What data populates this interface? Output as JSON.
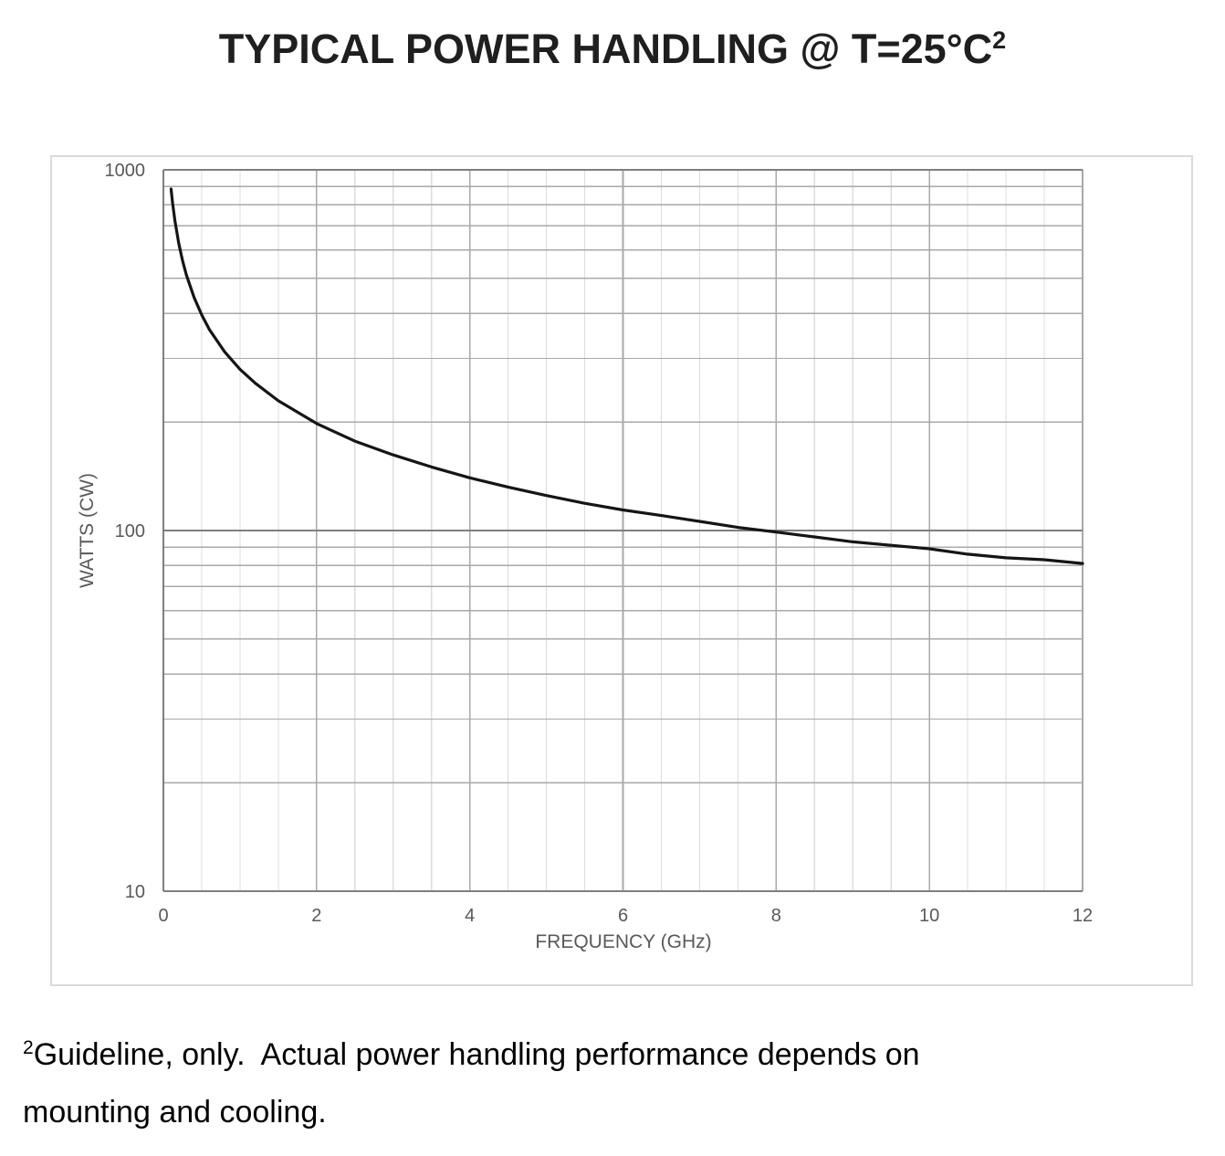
{
  "title": {
    "text": "TYPICAL POWER HANDLING @ T=25°C",
    "superscript": "2"
  },
  "footnote": {
    "superscript": "2",
    "line1": "Guideline, only.  Actual power handling performance depends on",
    "line2": "mounting and cooling."
  },
  "chart_data": {
    "type": "line",
    "title": "TYPICAL POWER HANDLING @ T=25°C²",
    "xlabel": "FREQUENCY (GHz)",
    "ylabel": "WATTS (CW)",
    "xlim": [
      0,
      12
    ],
    "ylim": [
      10,
      1000
    ],
    "y_scale": "log10",
    "grid": true,
    "legend": "none",
    "x_major_ticks": [
      0,
      2,
      4,
      6,
      8,
      10,
      12
    ],
    "x_tick_labels": [
      "0",
      "2",
      "4",
      "6",
      "8",
      "10",
      "12"
    ],
    "x_minor_step": 0.5,
    "y_major_ticks": [
      10,
      100,
      1000
    ],
    "y_tick_labels": [
      "10",
      "100",
      "1000"
    ],
    "y_minor_gridlines": [
      20,
      30,
      40,
      50,
      60,
      70,
      80,
      90,
      200,
      300,
      400,
      500,
      600,
      700,
      800,
      900
    ],
    "series": [
      {
        "color": "#151515",
        "points": [
          [
            0.1,
            885
          ],
          [
            0.12,
            808
          ],
          [
            0.15,
            723
          ],
          [
            0.2,
            626
          ],
          [
            0.25,
            560
          ],
          [
            0.3,
            511
          ],
          [
            0.4,
            443
          ],
          [
            0.5,
            396
          ],
          [
            0.6,
            361
          ],
          [
            0.8,
            313
          ],
          [
            1,
            280
          ],
          [
            1.2,
            256
          ],
          [
            1.5,
            229
          ],
          [
            2,
            198
          ],
          [
            2.5,
            177
          ],
          [
            3,
            162
          ],
          [
            3.5,
            150
          ],
          [
            4,
            140
          ],
          [
            4.5,
            132
          ],
          [
            5,
            125
          ],
          [
            5.5,
            119
          ],
          [
            6,
            114
          ],
          [
            6.5,
            110
          ],
          [
            7,
            106
          ],
          [
            7.5,
            102
          ],
          [
            8,
            99
          ],
          [
            8.5,
            96
          ],
          [
            9,
            93
          ],
          [
            9.5,
            91
          ],
          [
            10,
            89
          ],
          [
            10.5,
            86
          ],
          [
            11,
            84
          ],
          [
            11.5,
            83
          ],
          [
            12,
            81
          ]
        ]
      }
    ]
  },
  "colors": {
    "curve": "#151515",
    "axis_major_line": "#7f7f7f",
    "gridline_minor_horizontal": "#a9a9a9",
    "gridline_major_vertical": "#a9a9a9",
    "gridline_minor_vertical": "#dcdcdc",
    "chart_border": "#d9d9d9",
    "tick_label_text": "#595959",
    "title_text": "#1f1f1f"
  }
}
